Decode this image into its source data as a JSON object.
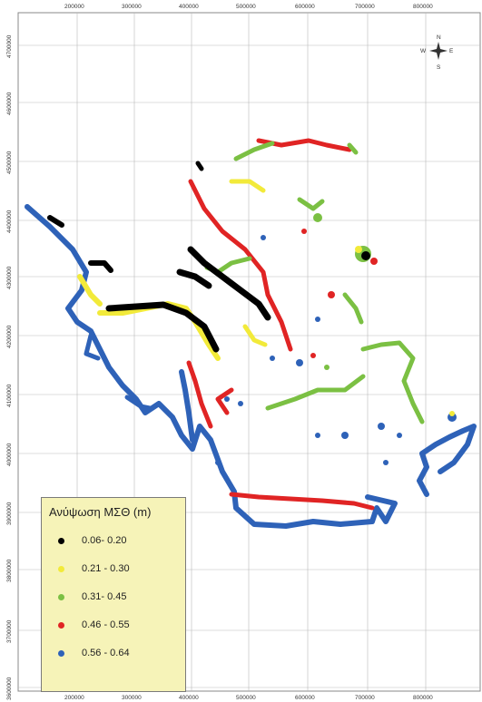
{
  "map": {
    "x_ticks": [
      "200000",
      "300000",
      "400000",
      "500000",
      "600000",
      "700000",
      "800000"
    ],
    "y_ticks": [
      "3600000",
      "3700000",
      "3800000",
      "3900000",
      "4000000",
      "4100000",
      "4200000",
      "4300000",
      "4400000",
      "4500000",
      "4600000",
      "4700000"
    ],
    "background": "#ffffff",
    "grid_color": "#b9b9b9"
  },
  "compass": {
    "n": "N",
    "s": "S",
    "e": "E",
    "w": "W"
  },
  "legend": {
    "title": "Ανύψωση ΜΣΘ (m)",
    "classes": [
      {
        "label": "0.06- 0.20",
        "color": "#000000"
      },
      {
        "label": "0.21 - 0.30",
        "color": "#f2ea3a"
      },
      {
        "label": "0.31- 0.45",
        "color": "#7bc043"
      },
      {
        "label": "0.46 - 0.55",
        "color": "#e02424"
      },
      {
        "label": "0.56 - 0.64",
        "color": "#2e62b8"
      }
    ]
  },
  "coastline_classes": [
    {
      "class": "0.56 - 0.64",
      "color": "#2e62b8"
    },
    {
      "class": "0.46 - 0.55",
      "color": "#e02424"
    },
    {
      "class": "0.31- 0.45",
      "color": "#7bc043"
    },
    {
      "class": "0.21 - 0.30",
      "color": "#f2ea3a"
    },
    {
      "class": "0.06- 0.20",
      "color": "#000000"
    }
  ]
}
